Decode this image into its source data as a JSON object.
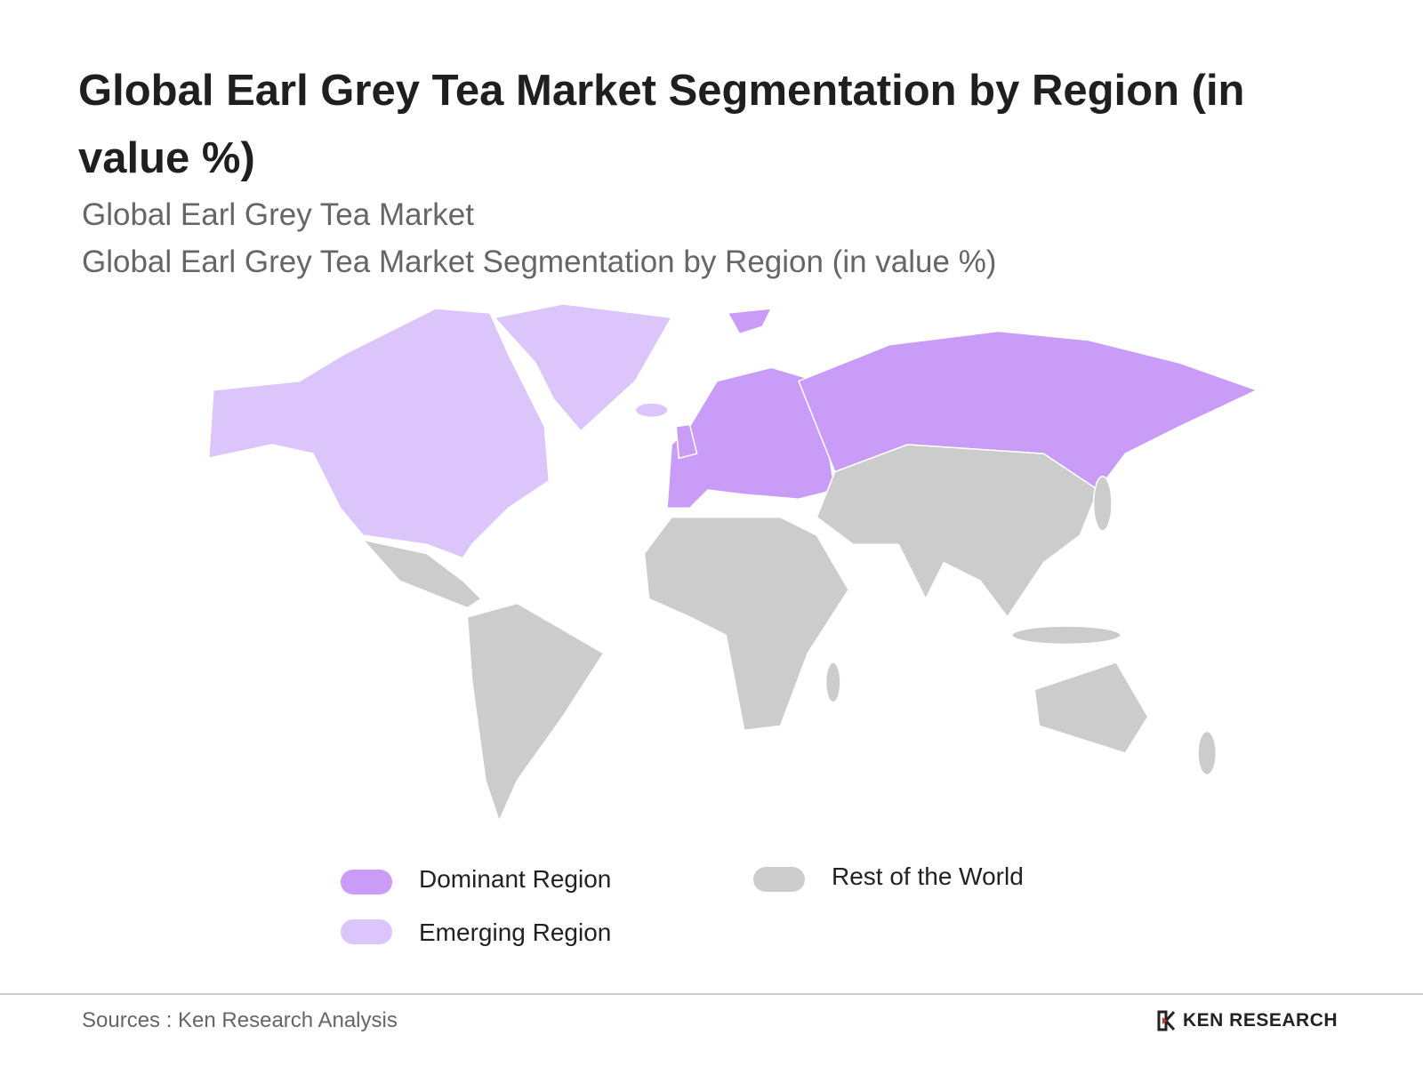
{
  "header": {
    "title": "Global Earl Grey Tea Market Segmentation by Region (in value %)",
    "subtitle": "Global Earl Grey Tea Market",
    "subtitle2": "Global Earl Grey Tea Market Segmentation by Region (in value %)"
  },
  "legend": {
    "items": [
      {
        "label": "Dominant Region",
        "color": "#c99cf8"
      },
      {
        "label": "Emerging Region",
        "color": "#dcc5fb"
      },
      {
        "label": "Rest of the World",
        "color": "#cccccc"
      }
    ]
  },
  "footer": {
    "source": "Sources : Ken Research Analysis",
    "logo": "KEN RESEARCH"
  }
}
